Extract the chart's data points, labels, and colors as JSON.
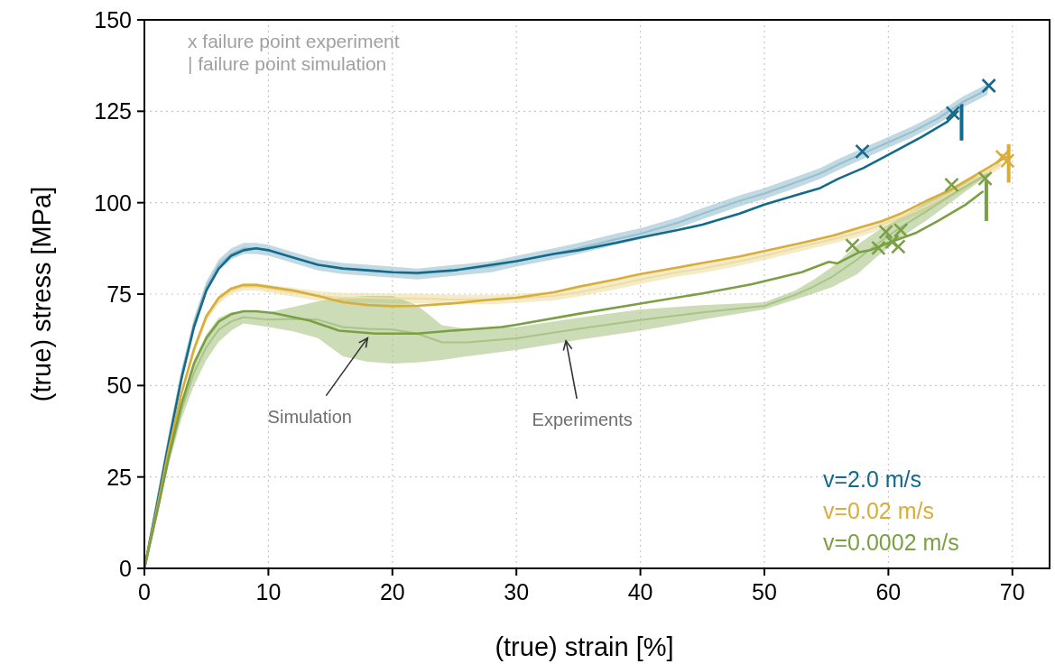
{
  "chart_data": {
    "type": "line",
    "xlabel": "(true) strain [%]",
    "ylabel": "(true) stress [MPa]",
    "xlim": [
      0,
      73
    ],
    "ylim": [
      0,
      150
    ],
    "xticks": [
      0,
      10,
      20,
      30,
      40,
      50,
      60,
      70
    ],
    "yticks": [
      0,
      25,
      50,
      75,
      100,
      125,
      150
    ],
    "grid": true,
    "line_style": "solid",
    "legend": "bottom right",
    "annotations": [
      "x failure point experiment",
      "| failure point simulation",
      {
        "text": "Simulation",
        "x": 18,
        "y": 63
      },
      {
        "text": "Experiments",
        "x": 34,
        "y": 62.2
      }
    ],
    "series": [
      {
        "color": "#97bfcf",
        "x": [
          0,
          1,
          2,
          3,
          4,
          5,
          6,
          7,
          8,
          9,
          10,
          12,
          14,
          16,
          18,
          20,
          22,
          25,
          28,
          30,
          33,
          35,
          38,
          40,
          43,
          45,
          48,
          50,
          52.5,
          54.5,
          56,
          58,
          60,
          62,
          64,
          66,
          68
        ],
        "values": [
          0,
          18,
          36,
          53,
          67,
          77,
          83,
          86,
          87.5,
          87.5,
          87,
          85,
          83,
          82,
          81.5,
          81,
          80.5,
          81.5,
          82.5,
          84,
          86,
          87.5,
          90,
          91.5,
          94.5,
          97,
          100.5,
          102.5,
          105.5,
          108,
          110.5,
          113.5,
          116.5,
          119.5,
          123,
          127.5,
          131
        ],
        "lower": [
          0,
          16.5,
          34.5,
          51.5,
          65.5,
          75.5,
          81.5,
          84.5,
          86,
          86,
          85.5,
          83.5,
          81.5,
          80.5,
          80,
          79.5,
          79,
          80,
          81,
          82.5,
          84.5,
          86,
          88.5,
          90,
          93,
          95.5,
          99,
          101,
          104,
          106.5,
          109,
          112,
          115,
          118,
          121.5,
          126,
          129.5
        ],
        "upper": [
          0,
          19.5,
          37.5,
          54.5,
          68.5,
          78.5,
          84.5,
          87.5,
          89,
          89,
          88.5,
          86.5,
          84.5,
          83.5,
          83,
          82.5,
          82,
          83,
          84,
          85.5,
          87.5,
          89,
          91.5,
          93,
          96,
          98.5,
          102,
          104,
          107,
          109.5,
          112,
          115,
          118,
          121,
          124.5,
          129,
          132.5
        ]
      },
      {
        "color": "#eddda4",
        "x": [
          0,
          1,
          2,
          3,
          4,
          5,
          6,
          7,
          8,
          9,
          10,
          12,
          14,
          16,
          18,
          20,
          22,
          25,
          28,
          30,
          33,
          35,
          38,
          40,
          43,
          45,
          48,
          50,
          53,
          55.5,
          57.8,
          59.5,
          61,
          63,
          65,
          67,
          69
        ],
        "values": [
          0,
          16,
          33,
          48,
          59.5,
          68.5,
          73.5,
          76,
          77,
          77,
          76.5,
          75.5,
          74.5,
          74,
          74,
          73.8,
          73.8,
          73.5,
          73.5,
          73.8,
          74.5,
          75.5,
          77.5,
          79,
          81,
          82,
          84,
          85.5,
          88,
          90,
          92,
          94,
          96,
          99,
          102.5,
          106.5,
          110.5
        ],
        "lower": [
          0,
          15,
          32,
          47,
          58.5,
          67.5,
          72.5,
          75,
          76,
          76,
          75.5,
          74.3,
          73.2,
          72.7,
          72.7,
          72.5,
          72.5,
          72.2,
          72.2,
          72.6,
          73.3,
          74.3,
          76.3,
          77.8,
          79.8,
          80.8,
          82.8,
          84.3,
          86.8,
          88.8,
          90.8,
          92.8,
          94.8,
          97.8,
          101.3,
          105.3,
          109.3
        ],
        "upper": [
          0,
          17,
          34,
          49,
          60.5,
          69.5,
          74.5,
          77,
          78,
          78,
          77.5,
          76.7,
          75.8,
          75.3,
          75.3,
          75.1,
          75.1,
          74.8,
          74.8,
          75,
          75.7,
          76.7,
          78.7,
          80.2,
          82.2,
          83.2,
          85.2,
          86.7,
          89.2,
          91.2,
          93.2,
          95.2,
          97.2,
          100.2,
          103.7,
          107.7,
          111.7
        ]
      },
      {
        "color": "#a9c486",
        "x": [
          0,
          1,
          2,
          3,
          4,
          5,
          6,
          7,
          8,
          10,
          12,
          14,
          16,
          18,
          20,
          22,
          24,
          26,
          30,
          35,
          40,
          45,
          50,
          52.5,
          54,
          55.5,
          57.5,
          59,
          61,
          63,
          65,
          67,
          68
        ],
        "values": [
          0,
          15,
          30.5,
          43.5,
          53.5,
          60.5,
          65.3,
          67.5,
          68.7,
          68,
          68.2,
          68,
          66,
          65.5,
          65.3,
          64.2,
          61.8,
          61.8,
          62.9,
          65.5,
          67.9,
          70,
          71.8,
          74.8,
          77.1,
          79.8,
          84.5,
          88.5,
          93.3,
          97.5,
          102,
          106,
          107.8
        ],
        "lower": [
          0,
          14,
          29,
          41,
          50,
          57,
          62,
          65,
          67,
          66,
          64.8,
          63,
          58,
          56.5,
          56,
          56.3,
          57,
          58,
          59.7,
          62.5,
          65,
          68,
          70.8,
          73.5,
          75.2,
          77,
          80.5,
          85,
          90.5,
          95,
          100,
          105,
          107.5
        ],
        "upper": [
          0,
          16,
          32,
          46,
          57,
          64,
          68.5,
          70,
          70.3,
          70,
          71.5,
          73,
          74,
          74.5,
          74.5,
          72,
          66.5,
          65.5,
          66,
          68.5,
          70.8,
          72,
          72.8,
          76,
          79,
          82.5,
          88.5,
          92,
          96,
          100,
          104,
          107,
          108
        ]
      },
      {
        "name": "v=2.0 m/s",
        "color": "#136a8c",
        "x": [
          0,
          1,
          2,
          3,
          4,
          5,
          6,
          7,
          8,
          9,
          10,
          12,
          14,
          16,
          18,
          20,
          22,
          25,
          28,
          30,
          33,
          35,
          38,
          40,
          43,
          45,
          48,
          50,
          52.5,
          54.5,
          56,
          58,
          60.5,
          62.7,
          64.7,
          65.6
        ],
        "values": [
          0,
          17,
          35,
          52,
          66,
          76,
          82,
          85.5,
          87,
          87.5,
          87,
          85,
          83,
          82,
          81.5,
          81,
          80.8,
          81.5,
          83,
          84,
          86,
          87,
          89,
          90.5,
          92.5,
          94,
          97,
          99.5,
          102,
          104,
          106.6,
          109.5,
          114,
          118,
          122,
          125
        ]
      },
      {
        "name": "v=0.02 m/s",
        "color": "#d8ad3a",
        "x": [
          0,
          1,
          2,
          3,
          4,
          5,
          6,
          7,
          8,
          9,
          10,
          12,
          14,
          16,
          18,
          20,
          22,
          25,
          28,
          30,
          33,
          35,
          38,
          40,
          43,
          45,
          48,
          50,
          53,
          55.5,
          57.8,
          59.5,
          61,
          63,
          65,
          67,
          69.5
        ],
        "values": [
          0,
          16,
          33,
          48,
          60,
          69,
          74,
          76.5,
          77.5,
          77.5,
          77,
          76,
          74.5,
          72.8,
          72,
          71.7,
          71.8,
          72.5,
          73.5,
          74,
          75.5,
          77,
          79,
          80.5,
          82.3,
          83.5,
          85.3,
          86.8,
          89,
          91,
          93.3,
          95,
          97,
          100.4,
          103.5,
          107.5,
          112.5
        ]
      },
      {
        "name": "v=0.0002 m/s",
        "color": "#7ba043",
        "x": [
          0,
          1,
          2,
          3,
          4,
          5,
          6,
          7,
          8,
          9,
          10.4,
          13.3,
          15.7,
          18.6,
          22,
          24.8,
          28.8,
          30,
          35,
          40,
          45,
          49,
          53,
          55.2,
          55.9,
          57.6,
          58.6,
          60,
          62.2,
          64,
          66.2,
          67.6
        ],
        "values": [
          0,
          15,
          31,
          45,
          56,
          63,
          67.5,
          69.5,
          70.3,
          70.3,
          69.8,
          67.8,
          65,
          64.2,
          64.2,
          65,
          66,
          66.6,
          69.6,
          72.4,
          75.2,
          77.7,
          81,
          83.8,
          83.4,
          86.4,
          87.1,
          89,
          91.7,
          95,
          99.4,
          103
        ]
      },
      {
        "type": "scatter",
        "marker": "cross",
        "color": "#136a8c",
        "x": [
          57.9,
          65.2,
          68.1
        ],
        "values": [
          114,
          124.5,
          132
        ]
      },
      {
        "type": "scatter",
        "marker": "cross",
        "color": "#d8ad3a",
        "x": [
          69.2,
          69.6
        ],
        "values": [
          112.5,
          111.5
        ]
      },
      {
        "type": "scatter",
        "marker": "cross",
        "color": "#7ba043",
        "x": [
          57.1,
          59.2,
          59.8,
          60.3,
          60.8,
          61,
          65.1,
          67.8
        ],
        "values": [
          88.3,
          87.6,
          92,
          89.3,
          88,
          92.5,
          104.9,
          106.6
        ]
      },
      {
        "type": "bar",
        "color": "#136a8c",
        "x": [
          65.9
        ],
        "base": [
          117
        ],
        "values": [
          10
        ]
      },
      {
        "type": "bar",
        "color": "#d8ad3a",
        "x": [
          69.7
        ],
        "base": [
          105.5
        ],
        "values": [
          10.5
        ]
      },
      {
        "type": "bar",
        "color": "#7ba043",
        "x": [
          67.9
        ],
        "base": [
          95
        ],
        "values": [
          11
        ]
      }
    ]
  }
}
